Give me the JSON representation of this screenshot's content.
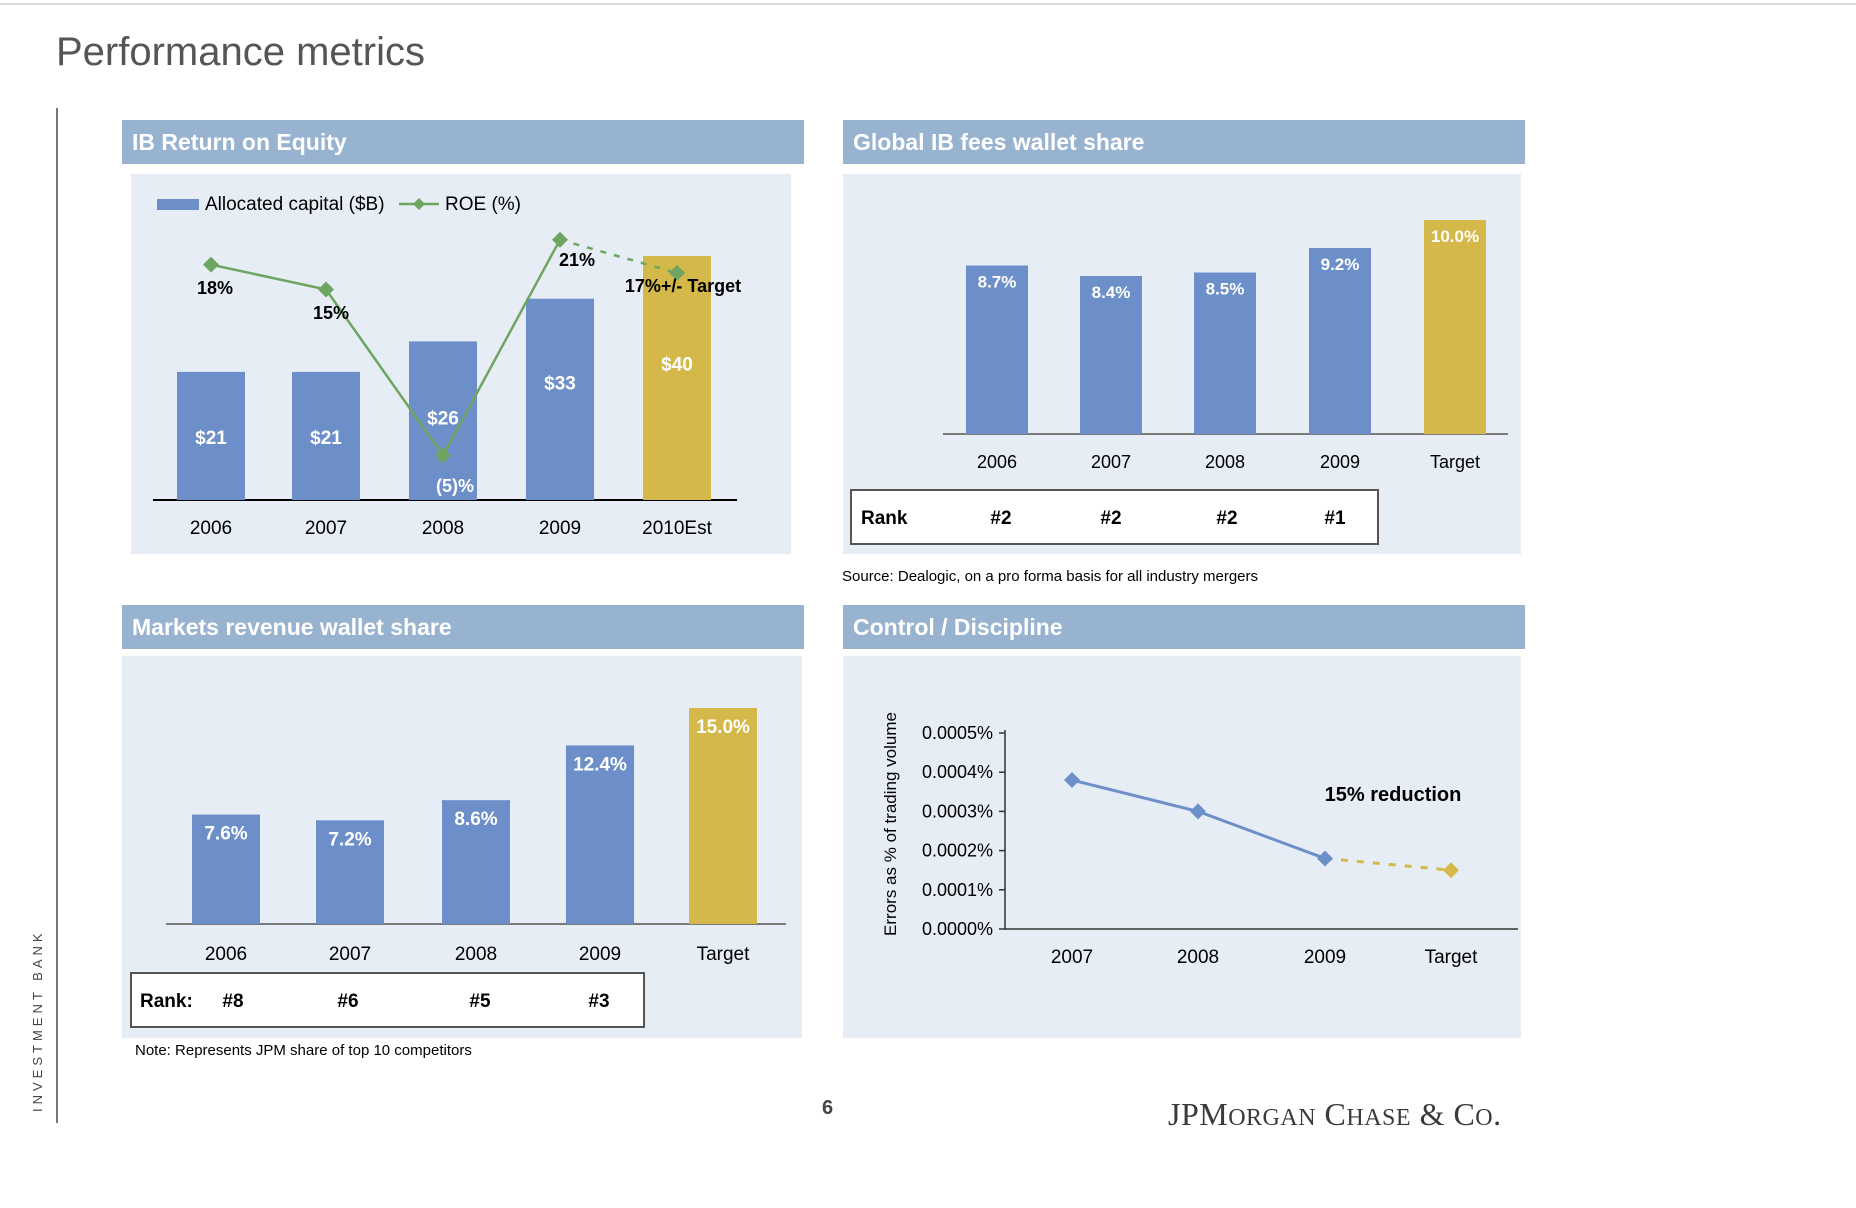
{
  "page": {
    "title": "Performance metrics",
    "sidebar_label": "INVESTMENT BANK",
    "page_number": "6",
    "logo": "JPMorgan Chase & Co.",
    "colors": {
      "header": "#98b3d0",
      "panel_bg": "#e7edf5",
      "bar_blue": "#6d8fc9",
      "bar_gold": "#d4b94a",
      "roe_green": "#6ea661"
    }
  },
  "panels": {
    "roe": {
      "header": "IB Return on Equity"
    },
    "ib_fees": {
      "header": "Global IB fees wallet share",
      "source": "Source: Dealogic, on a pro forma basis for all industry mergers"
    },
    "markets": {
      "header": "Markets revenue wallet share",
      "note": "Note: Represents JPM share of top 10 competitors"
    },
    "control": {
      "header": "Control / Discipline"
    }
  },
  "chart_data": [
    {
      "id": "roe",
      "type": "bar",
      "categories": [
        "2006",
        "2007",
        "2008",
        "2009",
        "2010Est"
      ],
      "series": [
        {
          "name": "Allocated capital ($B)",
          "type": "bar",
          "values": [
            21,
            21,
            26,
            33,
            40
          ],
          "labels": [
            "$21",
            "$21",
            "$26",
            "$33",
            "$40"
          ],
          "colors": [
            "blue",
            "blue",
            "blue",
            "blue",
            "gold"
          ]
        },
        {
          "name": "ROE (%)",
          "type": "line",
          "values": [
            18,
            15,
            -5,
            21,
            17
          ],
          "labels": [
            "18%",
            "15%",
            "(5)%",
            "21%",
            "17%+/- Target"
          ],
          "dashed_last_segment": true
        }
      ],
      "legend": [
        "Allocated capital ($B)",
        "ROE (%)"
      ],
      "legend_position": "top-left",
      "ylim": [
        0,
        42
      ]
    },
    {
      "id": "ib_fees",
      "type": "bar",
      "categories": [
        "2006",
        "2007",
        "2008",
        "2009",
        "Target"
      ],
      "values": [
        8.7,
        8.4,
        8.5,
        9.2,
        10.0
      ],
      "labels": [
        "8.7%",
        "8.4%",
        "8.5%",
        "9.2%",
        "10.0%"
      ],
      "colors": [
        "blue",
        "blue",
        "blue",
        "blue",
        "gold"
      ],
      "rank_label": "Rank",
      "ranks": [
        "#2",
        "#2",
        "#2",
        "#1"
      ]
    },
    {
      "id": "markets",
      "type": "bar",
      "categories": [
        "2006",
        "2007",
        "2008",
        "2009",
        "Target"
      ],
      "values": [
        7.6,
        7.2,
        8.6,
        12.4,
        15.0
      ],
      "labels": [
        "7.6%",
        "7.2%",
        "8.6%",
        "12.4%",
        "15.0%"
      ],
      "colors": [
        "blue",
        "blue",
        "blue",
        "blue",
        "gold"
      ],
      "rank_label": "Rank:",
      "ranks": [
        "#8",
        "#6",
        "#5",
        "#3"
      ]
    },
    {
      "id": "control",
      "type": "line",
      "categories": [
        "2007",
        "2008",
        "2009",
        "Target"
      ],
      "values": [
        0.00038,
        0.0003,
        0.00018,
        0.00015
      ],
      "ylabel": "Errors as % of trading volume",
      "yticks": [
        "0.0000%",
        "0.0001%",
        "0.0002%",
        "0.0003%",
        "0.0004%",
        "0.0005%"
      ],
      "ylim": [
        0,
        0.0005
      ],
      "annotation": "15% reduction",
      "dashed_last_segment": true
    }
  ]
}
